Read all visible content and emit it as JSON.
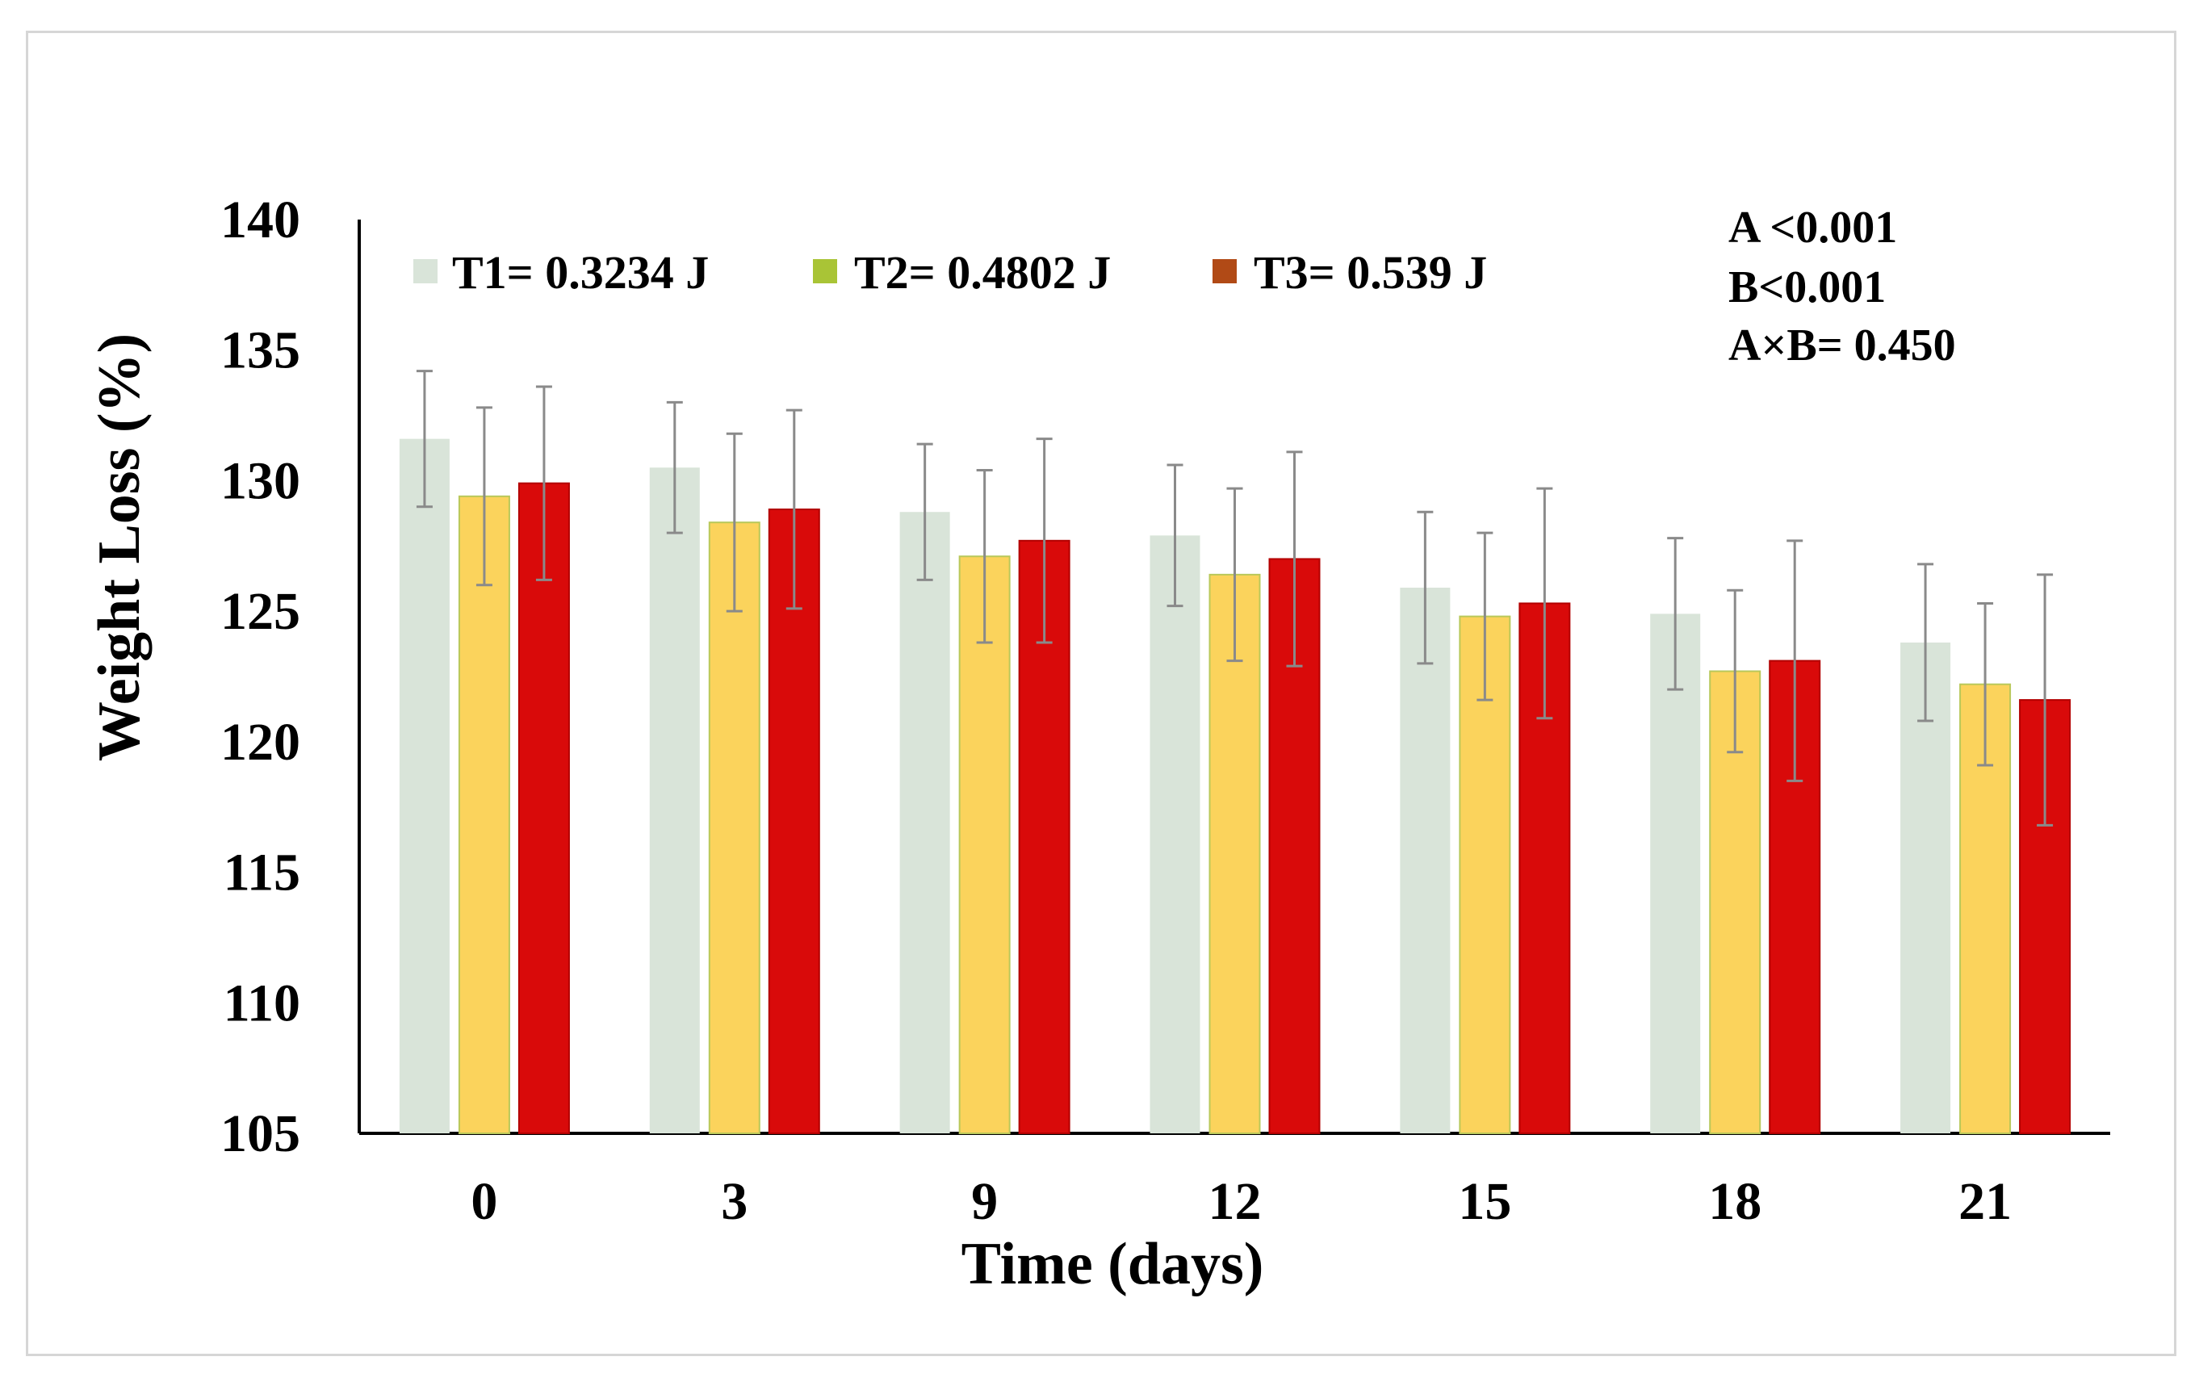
{
  "chart_data": {
    "type": "bar",
    "title": "",
    "xlabel": "Time (days)",
    "ylabel": "Weight Loss (%)",
    "ylim": [
      105,
      140
    ],
    "yticks": [
      "105",
      "110",
      "115",
      "120",
      "125",
      "130",
      "135",
      "140"
    ],
    "categories": [
      "0",
      "3",
      "9",
      "12",
      "15",
      "18",
      "21"
    ],
    "series": [
      {
        "name": "T1= 0.3234 J",
        "color": "#d9e4d9",
        "values": [
          131.6,
          130.5,
          128.8,
          127.9,
          125.9,
          124.9,
          123.8
        ],
        "errors": [
          2.6,
          2.5,
          2.6,
          2.7,
          2.9,
          2.9,
          3.0
        ]
      },
      {
        "name": "T2= 0.4802 J",
        "color": "#fbd35c",
        "legend_color": "#a9c436",
        "values": [
          129.4,
          128.4,
          127.1,
          126.4,
          124.8,
          122.7,
          122.2
        ],
        "errors": [
          3.4,
          3.4,
          3.3,
          3.3,
          3.2,
          3.1,
          3.1
        ]
      },
      {
        "name": "T3= 0.539 J",
        "color": "#d90a0a",
        "legend_color": "#b14a16",
        "values": [
          129.9,
          128.9,
          127.7,
          127.0,
          125.3,
          123.1,
          121.6
        ],
        "errors": [
          3.7,
          3.8,
          3.9,
          4.1,
          4.4,
          4.6,
          4.8
        ]
      }
    ],
    "annotations": [
      "A <0.001",
      "B<0.001",
      "A×B= 0.450"
    ],
    "legend_position": "top-left",
    "grid": false
  }
}
